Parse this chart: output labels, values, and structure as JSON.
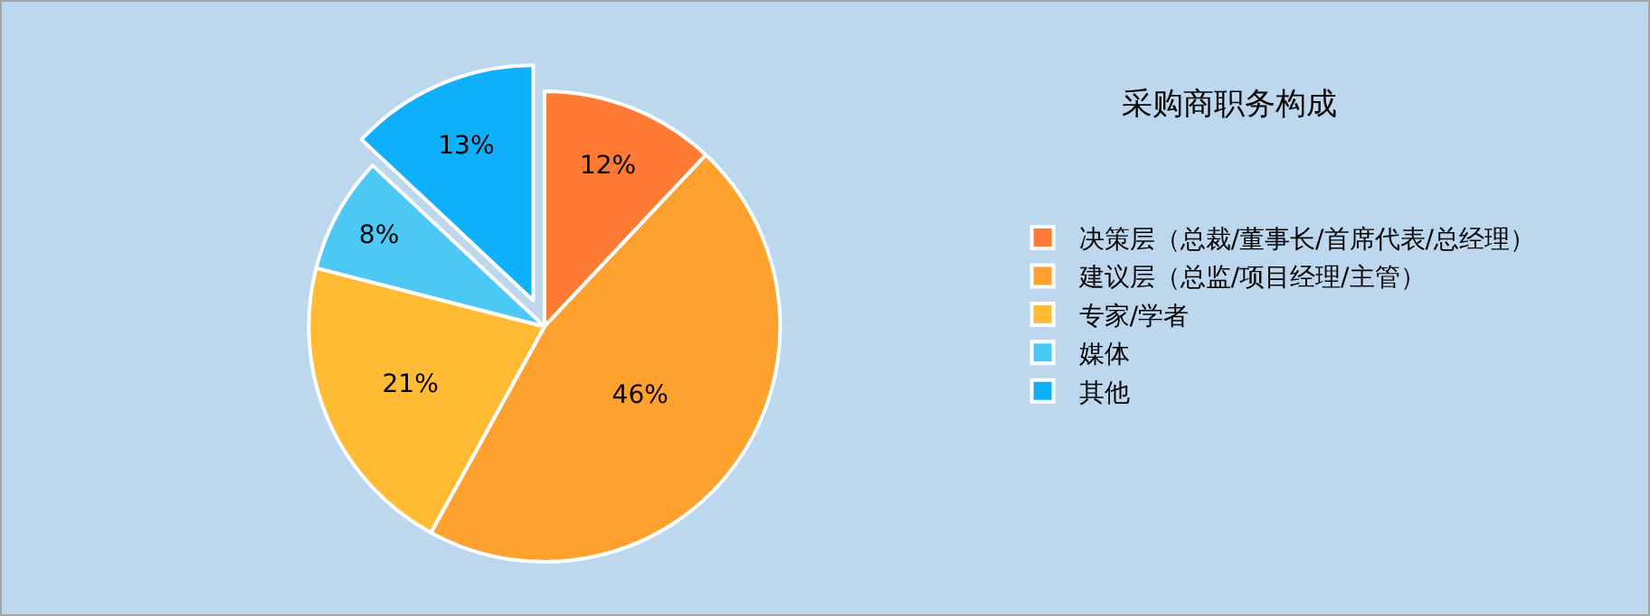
{
  "chart_data": {
    "type": "pie",
    "title": "采购商职务构成",
    "categories": [
      "决策层（总裁/董事长/首席代表/总经理）",
      "建议层（总监/项目经理/主管）",
      "专家/学者",
      "媒体",
      "其他"
    ],
    "values": [
      12,
      46,
      21,
      8,
      13
    ],
    "colors": [
      "#ff7a33",
      "#ffa12e",
      "#ffbb33",
      "#4cc8f5",
      "#0fb0fa"
    ],
    "value_labels": [
      "12%",
      "46%",
      "21%",
      "8%",
      "13%"
    ],
    "legend": "right"
  }
}
